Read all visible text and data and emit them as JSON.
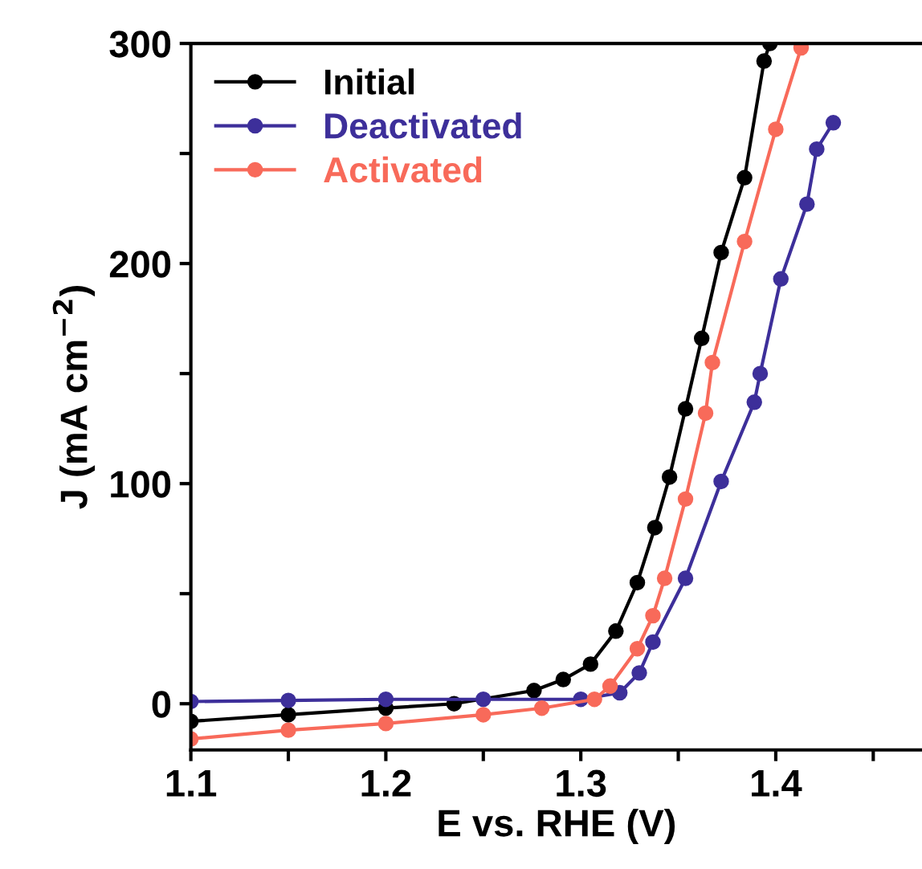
{
  "chart_data": {
    "type": "line",
    "xlabel": "E vs. RHE (V)",
    "ylabel": "J (mA cm$^{−2}$)",
    "xlim": [
      1.1,
      1.475
    ],
    "ylim": [
      -21,
      300
    ],
    "xticks": [
      1.1,
      {
        "value": 1.15,
        "label": null
      },
      1.2,
      {
        "value": 1.25,
        "label": null
      },
      1.3,
      {
        "value": 1.35,
        "label": null
      },
      1.4,
      {
        "value": 1.45,
        "label": null
      }
    ],
    "yticks": [
      0,
      {
        "value": 50,
        "label": null
      },
      100,
      {
        "value": 150,
        "label": null
      },
      200,
      {
        "value": 250,
        "label": null
      },
      300
    ],
    "grid": false,
    "legend": "top left",
    "marker": "circle",
    "line_style": "solid",
    "series": [
      {
        "name": "Initial",
        "color": "#000000",
        "x": [
          1.1,
          1.15,
          1.2,
          1.235,
          1.276,
          1.291,
          1.305,
          1.318,
          1.329,
          1.338,
          1.3455,
          1.3537,
          1.362,
          1.372,
          1.384,
          1.394,
          1.397
        ],
        "values": [
          -8,
          -5,
          -2,
          0,
          6,
          11,
          18,
          33,
          55,
          80,
          103,
          134,
          166,
          205,
          239,
          292,
          300
        ]
      },
      {
        "name": "Deactivated",
        "color": "#3d2f9a",
        "x": [
          1.1,
          1.15,
          1.2,
          1.25,
          1.3,
          1.32,
          1.33,
          1.337,
          1.3537,
          1.372,
          1.389,
          1.392,
          1.4026,
          1.416,
          1.421,
          1.4295
        ],
        "values": [
          1,
          1.5,
          2,
          2,
          2,
          5,
          14,
          28,
          57,
          101,
          137,
          150,
          193,
          227,
          252,
          264
        ]
      },
      {
        "name": "Activated",
        "color": "#f86a5a",
        "x": [
          1.1,
          1.15,
          1.2,
          1.25,
          1.28,
          1.307,
          1.315,
          1.329,
          1.337,
          1.343,
          1.3537,
          1.364,
          1.3675,
          1.384,
          1.4,
          1.413
        ],
        "values": [
          -16,
          -12,
          -9,
          -5,
          -2,
          2,
          8,
          25,
          40,
          57,
          93,
          132,
          155,
          210,
          261,
          298
        ]
      }
    ]
  }
}
